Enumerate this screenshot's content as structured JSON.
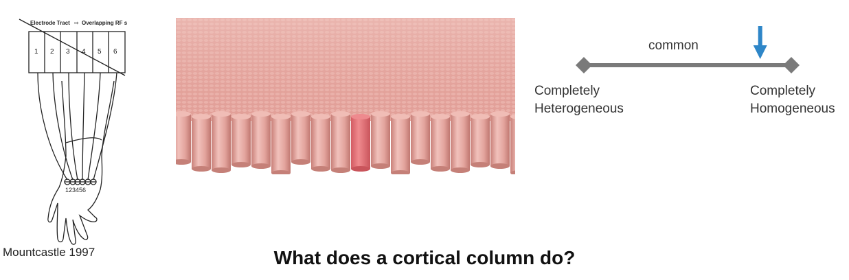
{
  "mountcastle": {
    "header": "Electrode Tract",
    "header_right": "Overlapping RF s",
    "cells": [
      "1",
      "2",
      "3",
      "4",
      "5",
      "6"
    ],
    "finger_labels": "123456",
    "caption": "Mountcastle 1997"
  },
  "spectrum": {
    "marker_label": "common",
    "left_label_line1": "Completely",
    "left_label_line2": "Heterogeneous",
    "right_label_line1": "Completely",
    "right_label_line2": "Homogeneous",
    "marker_position": 0.85,
    "colors": {
      "line": "#7a7a7a",
      "arrow": "#2e86c8"
    }
  },
  "columns": {
    "colors": {
      "base": "#e8aaa3",
      "highlight": "#e46f73"
    }
  },
  "question": "What does a cortical column do?"
}
